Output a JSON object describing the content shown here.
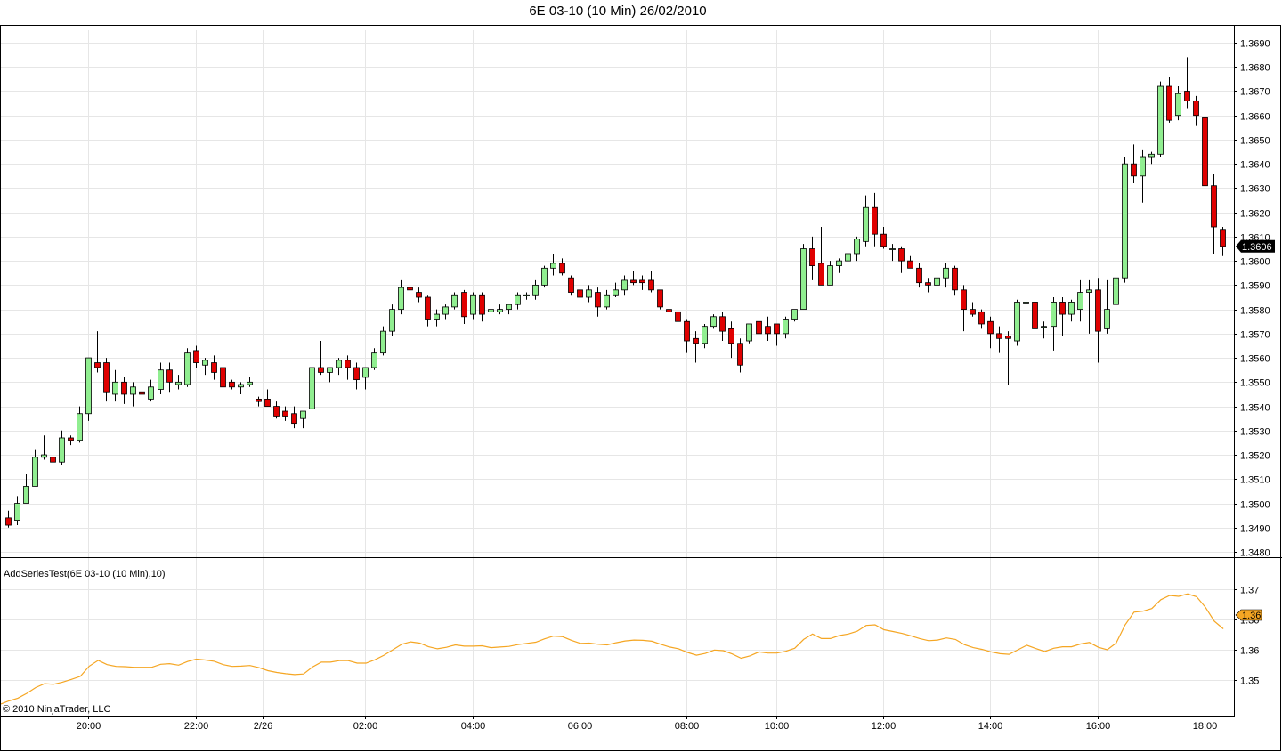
{
  "window": {
    "title": "6E 03-10 (10 Min)  26/02/2010"
  },
  "colors": {
    "up": "#90ee90",
    "down": "#e00000",
    "wick": "#000000",
    "grid": "#e6e6e6",
    "indicator": "#f5a623",
    "tag_bg": "#000000"
  },
  "chart_data": [
    {
      "type": "candlestick",
      "title": "6E 03-10 (10 Min)  26/02/2010",
      "ylim": [
        1.348,
        1.369
      ],
      "yticks": [
        "1.3690",
        "1.3680",
        "1.3670",
        "1.3660",
        "1.3650",
        "1.3640",
        "1.3630",
        "1.3620",
        "1.3610",
        "1.3600",
        "1.3590",
        "1.3580",
        "1.3570",
        "1.3560",
        "1.3550",
        "1.3540",
        "1.3530",
        "1.3520",
        "1.3510",
        "1.3500",
        "1.3490",
        "1.3480"
      ],
      "xticks": [
        {
          "bar": 9,
          "label": "20:00"
        },
        {
          "bar": 21,
          "label": "22:00"
        },
        {
          "bar": 28.5,
          "label": "2/26"
        },
        {
          "bar": 40,
          "label": "02:00"
        },
        {
          "bar": 52,
          "label": "04:00"
        },
        {
          "bar": 64,
          "label": "06:00"
        },
        {
          "bar": 76,
          "label": "08:00"
        },
        {
          "bar": 86,
          "label": "10:00"
        },
        {
          "bar": 98,
          "label": "12:00"
        },
        {
          "bar": 110,
          "label": "14:00"
        },
        {
          "bar": 122,
          "label": "16:00"
        },
        {
          "bar": 134,
          "label": "18:00"
        }
      ],
      "last_value_tag": "1.3606",
      "candles": [
        [
          1.3494,
          1.3497,
          1.349,
          1.3491
        ],
        [
          1.3493,
          1.3503,
          1.3491,
          1.35
        ],
        [
          1.35,
          1.3512,
          1.35,
          1.3507
        ],
        [
          1.3507,
          1.3522,
          1.3507,
          1.3519
        ],
        [
          1.3519,
          1.3528,
          1.3518,
          1.352
        ],
        [
          1.3519,
          1.3524,
          1.3515,
          1.3517
        ],
        [
          1.3517,
          1.353,
          1.3516,
          1.3527
        ],
        [
          1.3527,
          1.3528,
          1.3524,
          1.3526
        ],
        [
          1.3526,
          1.354,
          1.3525,
          1.3537
        ],
        [
          1.3537,
          1.356,
          1.3534,
          1.356
        ],
        [
          1.3558,
          1.3571,
          1.3554,
          1.3556
        ],
        [
          1.3558,
          1.356,
          1.3542,
          1.3546
        ],
        [
          1.3545,
          1.3555,
          1.3542,
          1.355
        ],
        [
          1.355,
          1.3552,
          1.3541,
          1.3545
        ],
        [
          1.3545,
          1.355,
          1.354,
          1.3548
        ],
        [
          1.3546,
          1.3552,
          1.3539,
          1.3545
        ],
        [
          1.3543,
          1.3551,
          1.3542,
          1.3548
        ],
        [
          1.3547,
          1.3558,
          1.3545,
          1.3555
        ],
        [
          1.3555,
          1.3558,
          1.3546,
          1.355
        ],
        [
          1.3549,
          1.3553,
          1.3547,
          1.355
        ],
        [
          1.3549,
          1.3564,
          1.3548,
          1.3562
        ],
        [
          1.3563,
          1.3565,
          1.3556,
          1.3558
        ],
        [
          1.3557,
          1.356,
          1.3553,
          1.3559
        ],
        [
          1.3558,
          1.3561,
          1.3551,
          1.3554
        ],
        [
          1.3556,
          1.3557,
          1.3545,
          1.3548
        ],
        [
          1.355,
          1.3551,
          1.3547,
          1.3548
        ],
        [
          1.3548,
          1.355,
          1.3545,
          1.3549
        ],
        [
          1.3549,
          1.3552,
          1.3548,
          1.355
        ],
        [
          1.3543,
          1.3544,
          1.354,
          1.3542
        ],
        [
          1.3543,
          1.3547,
          1.354,
          1.354
        ],
        [
          1.354,
          1.3542,
          1.3535,
          1.3536
        ],
        [
          1.3538,
          1.354,
          1.3534,
          1.3536
        ],
        [
          1.3537,
          1.354,
          1.3531,
          1.3533
        ],
        [
          1.3535,
          1.3538,
          1.3531,
          1.3538
        ],
        [
          1.3539,
          1.3557,
          1.3537,
          1.3556
        ],
        [
          1.3556,
          1.3567,
          1.3553,
          1.3554
        ],
        [
          1.3554,
          1.3556,
          1.355,
          1.3556
        ],
        [
          1.3556,
          1.356,
          1.3553,
          1.3559
        ],
        [
          1.3559,
          1.3561,
          1.3551,
          1.3556
        ],
        [
          1.3556,
          1.3558,
          1.3547,
          1.3551
        ],
        [
          1.3552,
          1.3556,
          1.3547,
          1.3556
        ],
        [
          1.3556,
          1.3564,
          1.3555,
          1.3562
        ],
        [
          1.3562,
          1.3573,
          1.3561,
          1.3571
        ],
        [
          1.3571,
          1.3582,
          1.3569,
          1.358
        ],
        [
          1.358,
          1.3592,
          1.3578,
          1.3589
        ],
        [
          1.3589,
          1.3595,
          1.3587,
          1.3588
        ],
        [
          1.3587,
          1.3589,
          1.3583,
          1.3585
        ],
        [
          1.3585,
          1.3586,
          1.3573,
          1.3576
        ],
        [
          1.3576,
          1.358,
          1.3573,
          1.3578
        ],
        [
          1.3578,
          1.3582,
          1.3576,
          1.3581
        ],
        [
          1.3581,
          1.3587,
          1.358,
          1.3586
        ],
        [
          1.3587,
          1.3588,
          1.3574,
          1.3577
        ],
        [
          1.3578,
          1.3587,
          1.3576,
          1.3586
        ],
        [
          1.3586,
          1.3587,
          1.3575,
          1.3578
        ],
        [
          1.3579,
          1.3581,
          1.3578,
          1.358
        ],
        [
          1.3579,
          1.3582,
          1.3578,
          1.358
        ],
        [
          1.358,
          1.3582,
          1.3578,
          1.3582
        ],
        [
          1.3582,
          1.3587,
          1.358,
          1.3586
        ],
        [
          1.3586,
          1.3587,
          1.3584,
          1.3586
        ],
        [
          1.3586,
          1.3592,
          1.3584,
          1.359
        ],
        [
          1.359,
          1.3598,
          1.3589,
          1.3597
        ],
        [
          1.3597,
          1.3603,
          1.3594,
          1.3599
        ],
        [
          1.3599,
          1.3601,
          1.3594,
          1.3595
        ],
        [
          1.3593,
          1.3594,
          1.3586,
          1.3587
        ],
        [
          1.3588,
          1.359,
          1.3583,
          1.3585
        ],
        [
          1.3585,
          1.359,
          1.3583,
          1.3588
        ],
        [
          1.3587,
          1.3589,
          1.3577,
          1.3581
        ],
        [
          1.3581,
          1.3588,
          1.358,
          1.3586
        ],
        [
          1.3586,
          1.3591,
          1.3585,
          1.3588
        ],
        [
          1.3588,
          1.3594,
          1.3586,
          1.3592
        ],
        [
          1.3592,
          1.3596,
          1.359,
          1.3591
        ],
        [
          1.3592,
          1.3594,
          1.3588,
          1.3591
        ],
        [
          1.3592,
          1.3596,
          1.3587,
          1.3588
        ],
        [
          1.3588,
          1.3588,
          1.358,
          1.3581
        ],
        [
          1.358,
          1.3582,
          1.3576,
          1.3579
        ],
        [
          1.3579,
          1.3582,
          1.3574,
          1.3575
        ],
        [
          1.3575,
          1.3576,
          1.3562,
          1.3567
        ],
        [
          1.3568,
          1.3571,
          1.3558,
          1.3566
        ],
        [
          1.3566,
          1.3574,
          1.3564,
          1.3573
        ],
        [
          1.3573,
          1.3578,
          1.3572,
          1.3577
        ],
        [
          1.3577,
          1.3579,
          1.3567,
          1.3571
        ],
        [
          1.3572,
          1.3575,
          1.356,
          1.3566
        ],
        [
          1.3566,
          1.3568,
          1.3554,
          1.3557
        ],
        [
          1.3567,
          1.3574,
          1.3566,
          1.3574
        ],
        [
          1.3575,
          1.3577,
          1.3567,
          1.357
        ],
        [
          1.3573,
          1.3577,
          1.3567,
          1.357
        ],
        [
          1.3574,
          1.3574,
          1.3565,
          1.357
        ],
        [
          1.357,
          1.3577,
          1.3568,
          1.3576
        ],
        [
          1.3576,
          1.358,
          1.3575,
          1.358
        ],
        [
          1.358,
          1.3607,
          1.358,
          1.3605
        ],
        [
          1.3605,
          1.361,
          1.3592,
          1.3598
        ],
        [
          1.3599,
          1.3614,
          1.359,
          1.359
        ],
        [
          1.359,
          1.36,
          1.359,
          1.3598
        ],
        [
          1.3598,
          1.3601,
          1.3595,
          1.36
        ],
        [
          1.36,
          1.3605,
          1.3598,
          1.3603
        ],
        [
          1.3603,
          1.361,
          1.36,
          1.3609
        ],
        [
          1.3608,
          1.3627,
          1.3606,
          1.3622
        ],
        [
          1.3622,
          1.3628,
          1.3606,
          1.3611
        ],
        [
          1.3611,
          1.3614,
          1.3605,
          1.3606
        ],
        [
          1.3605,
          1.3607,
          1.36,
          1.3605
        ],
        [
          1.3605,
          1.3606,
          1.3595,
          1.36
        ],
        [
          1.36,
          1.3602,
          1.3597,
          1.3597
        ],
        [
          1.3597,
          1.3599,
          1.3589,
          1.3591
        ],
        [
          1.3591,
          1.3593,
          1.3587,
          1.359
        ],
        [
          1.359,
          1.3595,
          1.3587,
          1.3593
        ],
        [
          1.3593,
          1.3599,
          1.3589,
          1.3597
        ],
        [
          1.3597,
          1.3598,
          1.3586,
          1.3588
        ],
        [
          1.3588,
          1.359,
          1.3571,
          1.358
        ],
        [
          1.358,
          1.3583,
          1.3577,
          1.3578
        ],
        [
          1.3579,
          1.358,
          1.3572,
          1.3574
        ],
        [
          1.3575,
          1.3577,
          1.3564,
          1.357
        ],
        [
          1.357,
          1.3573,
          1.3562,
          1.3568
        ],
        [
          1.3569,
          1.3571,
          1.3549,
          1.3568
        ],
        [
          1.3567,
          1.3584,
          1.3565,
          1.3583
        ],
        [
          1.3583,
          1.3584,
          1.3574,
          1.3583
        ],
        [
          1.3583,
          1.3587,
          1.357,
          1.3572
        ],
        [
          1.3573,
          1.3575,
          1.3568,
          1.3573
        ],
        [
          1.3573,
          1.3585,
          1.3563,
          1.3583
        ],
        [
          1.3583,
          1.3585,
          1.3569,
          1.3578
        ],
        [
          1.3578,
          1.3584,
          1.3575,
          1.3583
        ],
        [
          1.358,
          1.3592,
          1.3575,
          1.3587
        ],
        [
          1.3587,
          1.3592,
          1.357,
          1.3588
        ],
        [
          1.3588,
          1.3593,
          1.3558,
          1.3571
        ],
        [
          1.3572,
          1.3592,
          1.357,
          1.358
        ],
        [
          1.3582,
          1.3599,
          1.358,
          1.3593
        ],
        [
          1.3593,
          1.3643,
          1.3591,
          1.364
        ],
        [
          1.364,
          1.3648,
          1.3632,
          1.3635
        ],
        [
          1.3635,
          1.3646,
          1.3624,
          1.3643
        ],
        [
          1.3643,
          1.3645,
          1.364,
          1.3644
        ],
        [
          1.3644,
          1.3674,
          1.3643,
          1.3672
        ],
        [
          1.3672,
          1.3676,
          1.3657,
          1.3658
        ],
        [
          1.366,
          1.3672,
          1.3658,
          1.3669
        ],
        [
          1.367,
          1.3684,
          1.3663,
          1.3666
        ],
        [
          1.3666,
          1.3668,
          1.3656,
          1.366
        ],
        [
          1.3659,
          1.366,
          1.363,
          1.3631
        ],
        [
          1.3631,
          1.3636,
          1.3603,
          1.3614
        ],
        [
          1.3613,
          1.3614,
          1.3602,
          1.3606
        ]
      ]
    },
    {
      "type": "line",
      "name": "AddSeriesTest(6E 03-10 (10 Min),10)",
      "ylim": [
        1.348,
        1.369
      ],
      "yticks": [
        {
          "value": 1.3675,
          "label": "1.37"
        },
        {
          "value": 1.3625,
          "label": "1.36"
        },
        {
          "value": 1.3575,
          "label": "1.36"
        },
        {
          "value": 1.3525,
          "label": "1.35"
        }
      ],
      "last_value_tag": "1.36"
    }
  ],
  "watermark": "© 2010 NinjaTrader, LLC"
}
